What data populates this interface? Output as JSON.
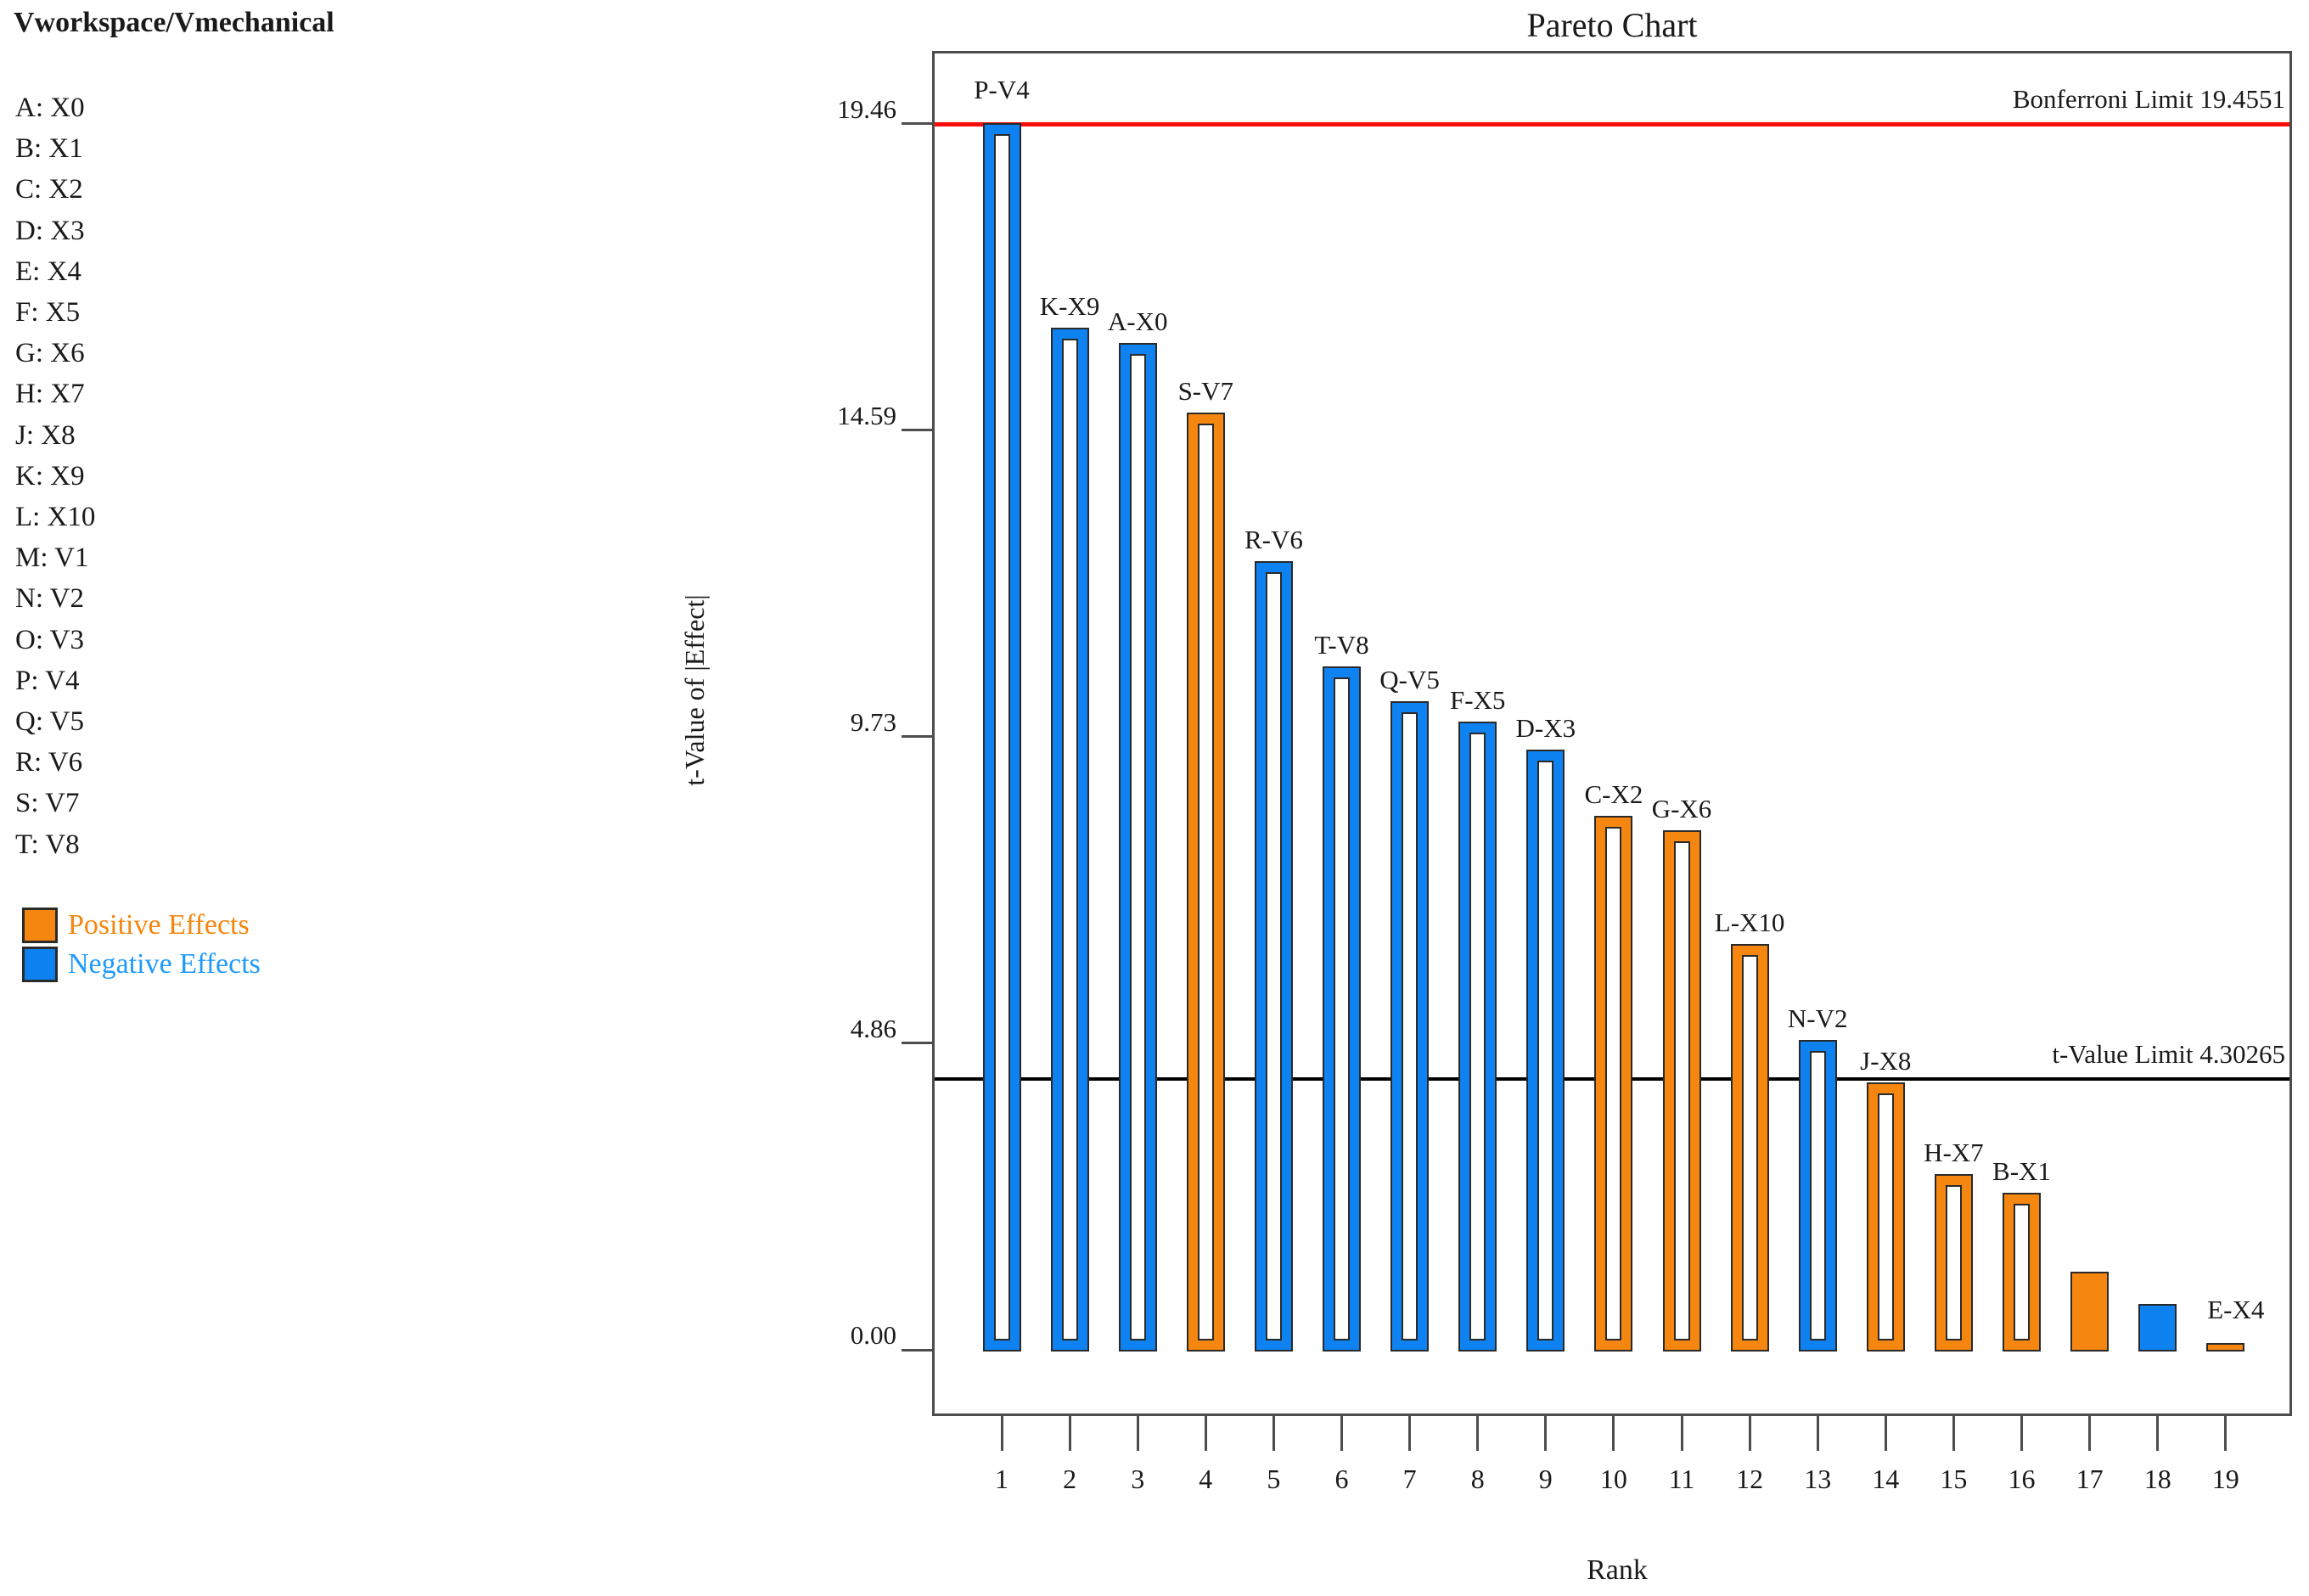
{
  "left_panel": {
    "header": "Vworkspace/Vmechanical",
    "factors": [
      "A: X0",
      "B: X1",
      "C: X2",
      "D: X3",
      "E: X4",
      "F: X5",
      "G: X6",
      "H: X7",
      "J: X8",
      "K: X9",
      "L: X10",
      "M: V1",
      "N: V2",
      "O: V3",
      "P: V4",
      "Q: V5",
      "R: V6",
      "S: V7",
      "T: V8"
    ],
    "legend": [
      {
        "label": "Positive Effects",
        "swatch_color": "#f5860f",
        "text_color": "#f5860f"
      },
      {
        "label": "Negative Effects",
        "swatch_color": "#0e82f0",
        "text_color": "#1e9aff"
      }
    ]
  },
  "chart_data": {
    "type": "bar",
    "title": "Pareto Chart",
    "xlabel": "Rank",
    "ylabel": "t-Value of |Effect|",
    "ylim": [
      0,
      19.46
    ],
    "grid": false,
    "legend_position": "left",
    "colors": {
      "positive": "#f5860f",
      "negative": "#0e82f0",
      "bar_outline": "#2a2a2a",
      "axis": "#4d4d4d",
      "bonferroni_line": "#f80d0d",
      "t_value_line": "#000000"
    },
    "yticks": [
      {
        "value": 19.46,
        "label": "19.46"
      },
      {
        "value": 14.595,
        "label": "14.59"
      },
      {
        "value": 9.73,
        "label": "9.73"
      },
      {
        "value": 4.865,
        "label": "4.86"
      },
      {
        "value": 0,
        "label": "0.00"
      }
    ],
    "xticks": [
      "1",
      "2",
      "3",
      "4",
      "5",
      "6",
      "7",
      "8",
      "9",
      "10",
      "11",
      "12",
      "13",
      "14",
      "15",
      "16",
      "17",
      "18",
      "19"
    ],
    "reference_lines": [
      {
        "name": "bonferroni-limit",
        "label": "Bonferroni Limit 19.4551",
        "value": 19.4551,
        "color": "#f80d0d",
        "thickness": 5
      },
      {
        "name": "t-value-limit",
        "label": "t-Value Limit 4.30265",
        "value": 4.30265,
        "color": "#000000",
        "thickness": 4
      }
    ],
    "bars": [
      {
        "rank": 1,
        "label": "P-V4",
        "value": 19.44,
        "effect": "negative",
        "style": "outlined",
        "label_dy": 14
      },
      {
        "rank": 2,
        "label": "K-X9",
        "value": 16.2,
        "effect": "negative",
        "style": "outlined"
      },
      {
        "rank": 3,
        "label": "A-X0",
        "value": 15.95,
        "effect": "negative",
        "style": "outlined"
      },
      {
        "rank": 4,
        "label": "S-V7",
        "value": 14.85,
        "effect": "positive",
        "style": "outlined"
      },
      {
        "rank": 5,
        "label": "R-V6",
        "value": 12.49,
        "effect": "negative",
        "style": "outlined"
      },
      {
        "rank": 6,
        "label": "T-V8",
        "value": 10.82,
        "effect": "negative",
        "style": "outlined"
      },
      {
        "rank": 7,
        "label": "Q-V5",
        "value": 10.27,
        "effect": "negative",
        "style": "outlined"
      },
      {
        "rank": 8,
        "label": "F-X5",
        "value": 9.95,
        "effect": "negative",
        "style": "outlined"
      },
      {
        "rank": 9,
        "label": "D-X3",
        "value": 9.5,
        "effect": "negative",
        "style": "outlined"
      },
      {
        "rank": 10,
        "label": "C-X2",
        "value": 8.45,
        "effect": "positive",
        "style": "outlined"
      },
      {
        "rank": 11,
        "label": "G-X6",
        "value": 8.22,
        "effect": "positive",
        "style": "outlined"
      },
      {
        "rank": 12,
        "label": "L-X10",
        "value": 6.42,
        "effect": "positive",
        "style": "outlined"
      },
      {
        "rank": 13,
        "label": "N-V2",
        "value": 4.89,
        "effect": "negative",
        "style": "outlined"
      },
      {
        "rank": 14,
        "label": "J-X8",
        "value": 4.22,
        "effect": "positive",
        "style": "outlined"
      },
      {
        "rank": 15,
        "label": "H-X7",
        "value": 2.76,
        "effect": "positive",
        "style": "outlined"
      },
      {
        "rank": 16,
        "label": "B-X1",
        "value": 2.47,
        "effect": "positive",
        "style": "outlined"
      },
      {
        "rank": 17,
        "label": "",
        "value": 1.21,
        "effect": "positive",
        "style": "solid"
      },
      {
        "rank": 18,
        "label": "",
        "value": 0.7,
        "effect": "negative",
        "style": "solid"
      },
      {
        "rank": 19,
        "label": "E-X4",
        "value": 0.08,
        "effect": "positive",
        "style": "solid",
        "label_dx": 12,
        "label_dy": 14
      }
    ]
  }
}
